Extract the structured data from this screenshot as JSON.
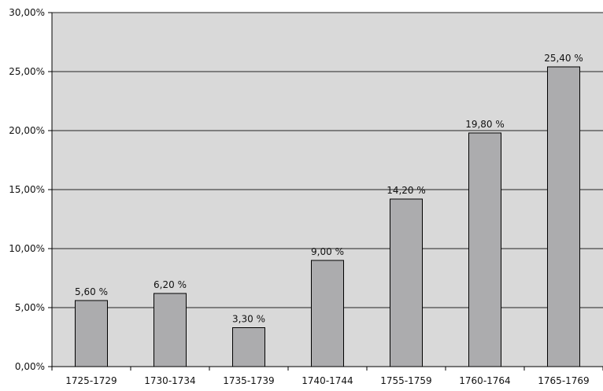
{
  "chart_data": {
    "type": "bar",
    "categories": [
      "1725-1729",
      "1730-1734",
      "1735-1739",
      "1740-1744",
      "1755-1759",
      "1760-1764",
      "1765-1769"
    ],
    "values": [
      5.6,
      6.2,
      3.3,
      9.0,
      14.2,
      19.8,
      25.4
    ],
    "data_labels": [
      "5,60 %",
      "6,20 %",
      "3,30 %",
      "9,00 %",
      "14,20 %",
      "19,80 %",
      "25,40 %"
    ],
    "y_ticks": [
      0,
      5,
      10,
      15,
      20,
      25,
      30
    ],
    "y_tick_labels": [
      "0,00%",
      "5,00%",
      "10,00%",
      "15,00%",
      "20,00%",
      "25,00%",
      "30,00%"
    ],
    "ylim": [
      0,
      30
    ],
    "grid": true,
    "title": "",
    "xlabel": "",
    "ylabel": "",
    "colors": {
      "plot_background": "#d9d9d9",
      "bar_fill": "#acacae",
      "bar_stroke": "#000000",
      "grid": "#222222"
    }
  }
}
